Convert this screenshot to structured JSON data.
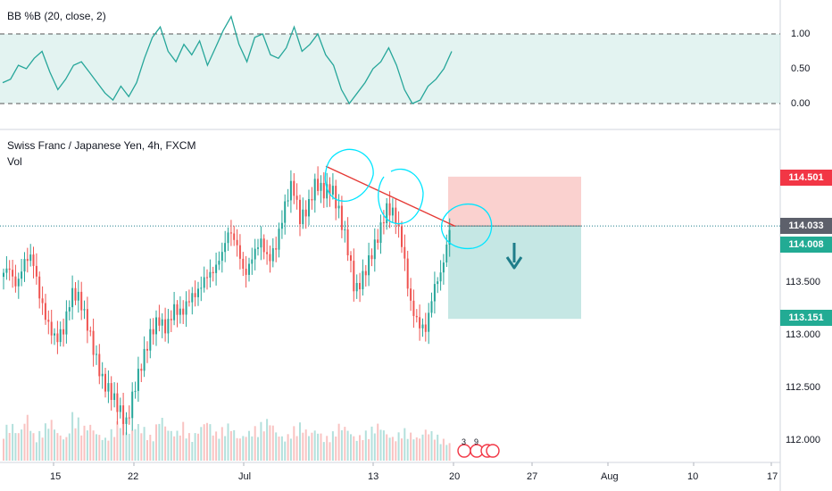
{
  "colors": {
    "up": "#26a69a",
    "down": "#ef5350",
    "indicator_band": "#cce9e6",
    "indicator_line": "#26a69a",
    "stop_zone": "#f9c5c3",
    "target_zone": "#b7e1dd",
    "trendline": "#e53935",
    "annotation": "#00e5ff",
    "tag_red": "#f23645",
    "tag_dark": "#5d606b",
    "tag_green": "#22ab94",
    "current_price_line": "#1e7d8a"
  },
  "indicator": {
    "title": "BB %B (20, close, 2)",
    "ticks": [
      "1.00",
      "0.50",
      "0.00"
    ],
    "tick_values": [
      1.0,
      0.5,
      0.0
    ],
    "upper_level": 1.0,
    "lower_level": 0.0
  },
  "main": {
    "title": "Swiss Franc / Japanese Yen, 4h, FXCM",
    "subtitle": "Vol",
    "price_ticks": [
      "113.500",
      "113.000",
      "112.500",
      "112.000"
    ],
    "price_tick_values": [
      113.5,
      113.0,
      112.5,
      112.0
    ],
    "price_tags": [
      {
        "label": "114.501",
        "value": 114.501,
        "color": "tag_red"
      },
      {
        "label": "114.033",
        "value": 114.033,
        "color": "tag_dark"
      },
      {
        "label": "114.008",
        "value": 114.008,
        "color": "tag_green"
      },
      {
        "label": "113.151",
        "value": 113.151,
        "color": "tag_green"
      }
    ],
    "event_markers": [
      "3",
      "9"
    ]
  },
  "time_axis": {
    "labels": [
      "15",
      "22",
      "Jul",
      "13",
      "20",
      "27",
      "Aug",
      "10",
      "17"
    ]
  },
  "chart_data": {
    "type": "candlestick",
    "title": "Swiss Franc / Japanese Yen, 4h, FXCM",
    "ylim": [
      111.88,
      114.92
    ],
    "candles_shown_until": "20",
    "price_path": [
      113.55,
      113.65,
      113.45,
      113.7,
      113.75,
      113.35,
      113.1,
      112.95,
      113.05,
      113.4,
      113.35,
      113.1,
      112.8,
      112.55,
      112.45,
      112.3,
      112.15,
      112.5,
      112.75,
      113.0,
      113.15,
      113.05,
      113.25,
      113.2,
      113.35,
      113.4,
      113.55,
      113.6,
      113.75,
      114.0,
      113.85,
      113.55,
      113.75,
      113.9,
      113.7,
      113.85,
      114.2,
      114.45,
      114.1,
      114.2,
      114.45,
      114.35,
      114.4,
      114.15,
      113.85,
      113.4,
      113.55,
      113.75,
      113.95,
      114.2,
      114.15,
      113.85,
      113.3,
      113.1,
      113.05,
      113.45,
      113.6,
      114.0
    ],
    "trendline": {
      "from": 114.6,
      "to": 114.03
    },
    "position": {
      "direction": "short",
      "stop": 114.501,
      "entry": 114.033,
      "target": 113.151
    },
    "indicator_series": [
      0.3,
      0.35,
      0.55,
      0.5,
      0.65,
      0.75,
      0.45,
      0.2,
      0.35,
      0.55,
      0.6,
      0.45,
      0.3,
      0.15,
      0.05,
      0.25,
      0.1,
      0.3,
      0.65,
      0.95,
      1.1,
      0.75,
      0.6,
      0.85,
      0.7,
      0.9,
      0.55,
      0.8,
      1.05,
      1.25,
      0.85,
      0.6,
      0.95,
      1.0,
      0.7,
      0.65,
      0.8,
      1.1,
      0.75,
      0.85,
      1.0,
      0.7,
      0.55,
      0.2,
      0.0,
      0.15,
      0.3,
      0.5,
      0.6,
      0.8,
      0.55,
      0.2,
      0.0,
      0.05,
      0.25,
      0.35,
      0.5,
      0.75
    ],
    "volume_series": [
      0.5,
      0.6,
      0.4,
      0.8,
      0.3,
      0.5,
      0.7,
      0.4,
      0.3,
      0.9,
      0.5,
      0.6,
      0.4,
      0.3,
      0.5,
      0.7,
      0.4,
      0.6,
      0.5,
      0.3,
      0.8,
      0.5,
      0.4,
      0.6,
      0.3,
      0.5,
      0.7,
      0.4,
      0.5,
      0.6,
      0.3,
      0.4,
      0.5,
      0.6,
      0.7,
      0.4,
      0.3,
      0.5,
      0.6,
      0.4,
      0.5,
      0.3,
      0.4,
      0.6,
      0.5,
      0.3,
      0.4,
      0.5,
      0.6,
      0.4,
      0.3,
      0.5,
      0.4,
      0.3,
      0.5,
      0.4,
      0.3,
      0.2
    ]
  }
}
